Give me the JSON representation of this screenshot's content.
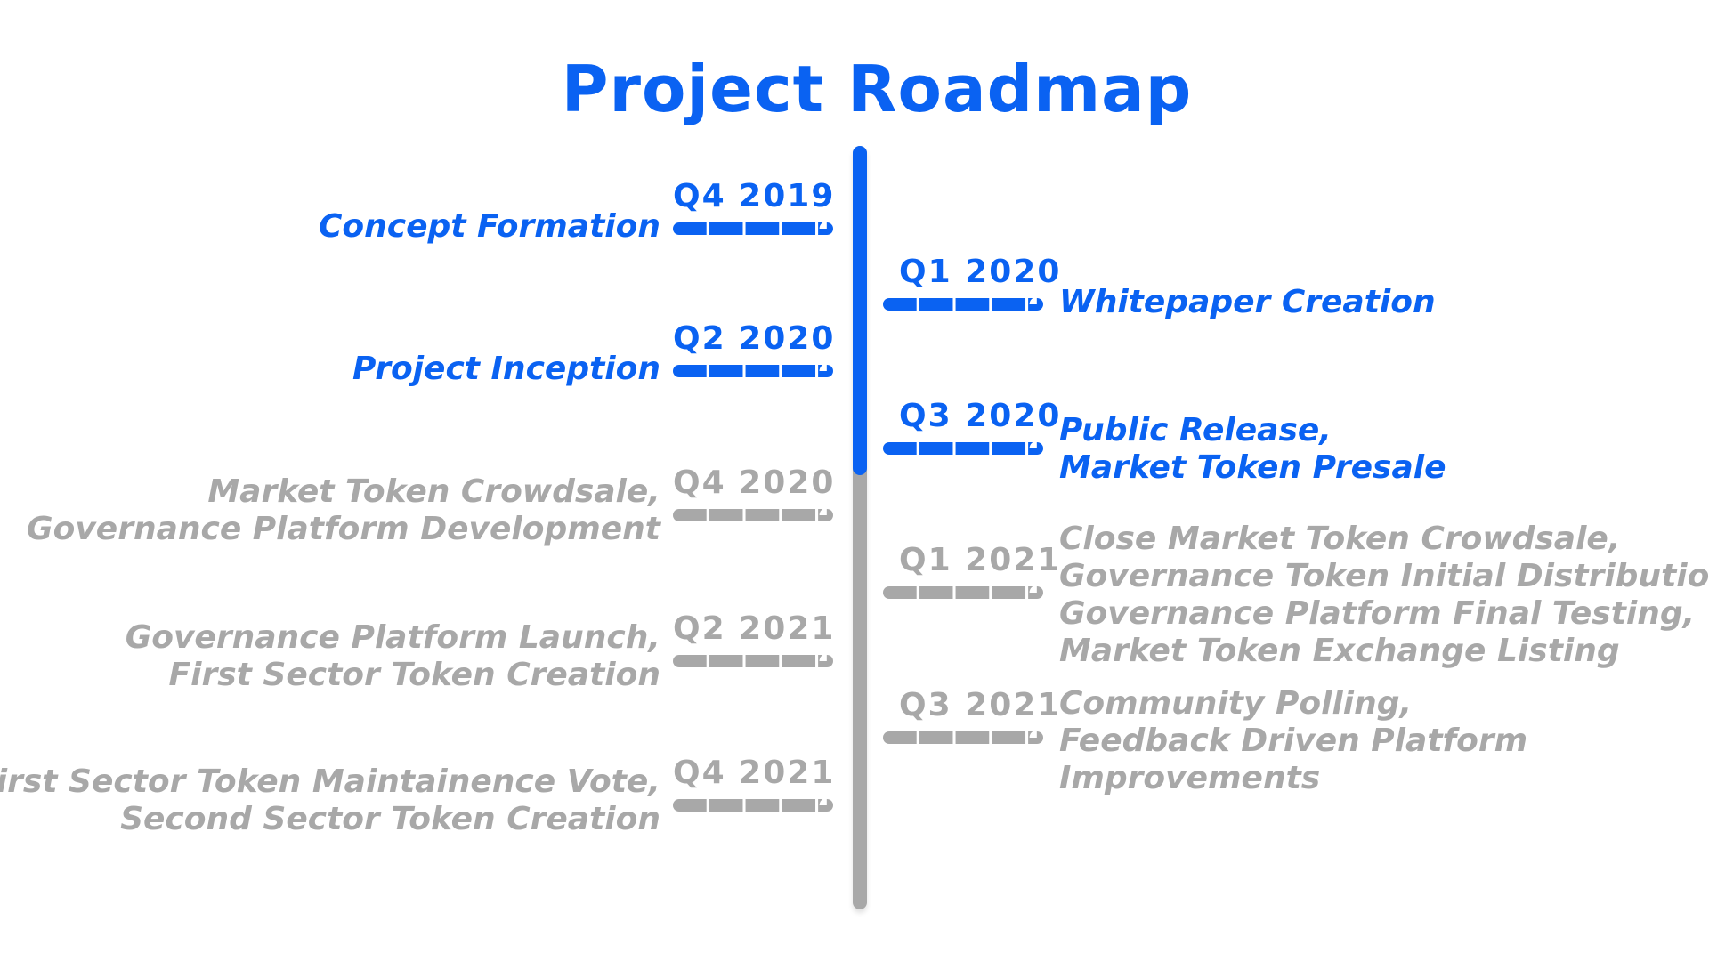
{
  "title": "Project Roadmap",
  "colors": {
    "active": "#0a62f2",
    "future": "#a8a8a8"
  },
  "milestones": [
    {
      "quarter": "Q4 2019",
      "label": "Concept Formation",
      "side": "left",
      "status": "active"
    },
    {
      "quarter": "Q1 2020",
      "label": "Whitepaper Creation",
      "side": "right",
      "status": "active"
    },
    {
      "quarter": "Q2 2020",
      "label": "Project Inception",
      "side": "left",
      "status": "active"
    },
    {
      "quarter": "Q3 2020",
      "label": "Public Release,\nMarket Token Presale",
      "side": "right",
      "status": "active"
    },
    {
      "quarter": "Q4 2020",
      "label": "Market Token Crowdsale,\nGovernance Platform Development",
      "side": "left",
      "status": "future"
    },
    {
      "quarter": "Q1 2021",
      "label": "Close Market Token Crowdsale,\nGovernance Token Initial Distribution,\nGovernance Platform Final Testing,\nMarket Token Exchange Listing",
      "side": "right",
      "status": "future"
    },
    {
      "quarter": "Q2 2021",
      "label": "Governance Platform Launch,\nFirst Sector Token Creation",
      "side": "left",
      "status": "future"
    },
    {
      "quarter": "Q3 2021",
      "label": "Community Polling,\nFeedback Driven Platform\nImprovements",
      "side": "right",
      "status": "future"
    },
    {
      "quarter": "Q4 2021",
      "label": "First Sector Token Maintainence Vote,\nSecond Sector Token Creation",
      "side": "left",
      "status": "future"
    }
  ]
}
